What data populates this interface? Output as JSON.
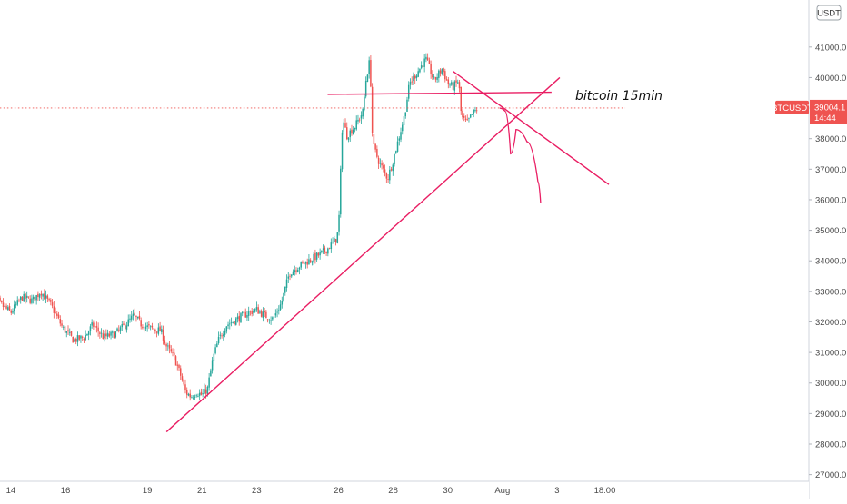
{
  "chart_data": {
    "type": "candlestick",
    "symbol_label": "BTCUSDT",
    "currency_label": "USDT",
    "annotation": "bitcoin 15min",
    "last_price": 39004.1,
    "last_price_label": "39004.1",
    "countdown_label": "14:44",
    "ylim": [
      27000,
      42000
    ],
    "y_ticks": [
      27000,
      28000,
      29000,
      30000,
      31000,
      32000,
      33000,
      34000,
      35000,
      36000,
      37000,
      38000,
      39000,
      40000,
      41000
    ],
    "y_tick_labels": [
      "27000.0",
      "28000.0",
      "29000.0",
      "30000.0",
      "31000.0",
      "32000.0",
      "33000.0",
      "34000.0",
      "35000.0",
      "36000.0",
      "37000.0",
      "38000.0",
      "39000.0",
      "40000.0",
      "41000.0"
    ],
    "x_range": [
      13.2,
      36.5
    ],
    "x_ticks": [
      {
        "label": "14",
        "day": 14
      },
      {
        "label": "16",
        "day": 16
      },
      {
        "label": "19",
        "day": 19
      },
      {
        "label": "21",
        "day": 21
      },
      {
        "label": "23",
        "day": 23
      },
      {
        "label": "26",
        "day": 26
      },
      {
        "label": "28",
        "day": 28
      },
      {
        "label": "30",
        "day": 30
      },
      {
        "label": "Aug",
        "day": 32
      },
      {
        "label": "3",
        "day": 34
      },
      {
        "label": "18:00",
        "day": 35.75
      }
    ],
    "price_path": [
      [
        13.2,
        33000
      ],
      [
        13.6,
        32600
      ],
      [
        14.0,
        32300
      ],
      [
        14.4,
        32800
      ],
      [
        14.8,
        32700
      ],
      [
        15.1,
        33000
      ],
      [
        15.5,
        32500
      ],
      [
        15.9,
        31800
      ],
      [
        16.3,
        31400
      ],
      [
        16.7,
        31500
      ],
      [
        17.0,
        31900
      ],
      [
        17.4,
        31500
      ],
      [
        17.8,
        31600
      ],
      [
        18.2,
        31900
      ],
      [
        18.5,
        32200
      ],
      [
        18.8,
        31900
      ],
      [
        19.1,
        31800
      ],
      [
        19.5,
        31700
      ],
      [
        19.7,
        31200
      ],
      [
        20.0,
        30800
      ],
      [
        20.2,
        30300
      ],
      [
        20.4,
        29700
      ],
      [
        20.6,
        29550
      ],
      [
        20.8,
        29700
      ],
      [
        21.0,
        29600
      ],
      [
        21.2,
        29800
      ],
      [
        21.4,
        30800
      ],
      [
        21.6,
        31400
      ],
      [
        21.9,
        31900
      ],
      [
        22.3,
        32100
      ],
      [
        22.7,
        32300
      ],
      [
        23.0,
        32400
      ],
      [
        23.3,
        32200
      ],
      [
        23.6,
        32100
      ],
      [
        23.9,
        32600
      ],
      [
        24.2,
        33600
      ],
      [
        24.5,
        33800
      ],
      [
        24.9,
        34000
      ],
      [
        25.3,
        34200
      ],
      [
        25.6,
        34400
      ],
      [
        25.9,
        34700
      ],
      [
        26.0,
        35000
      ],
      [
        26.1,
        37500
      ],
      [
        26.15,
        38700
      ],
      [
        26.3,
        38100
      ],
      [
        26.6,
        38400
      ],
      [
        26.9,
        38900
      ],
      [
        27.0,
        39900
      ],
      [
        27.15,
        40600
      ],
      [
        27.25,
        37800
      ],
      [
        27.5,
        37200
      ],
      [
        27.8,
        36700
      ],
      [
        28.0,
        37300
      ],
      [
        28.2,
        38000
      ],
      [
        28.4,
        38700
      ],
      [
        28.6,
        39800
      ],
      [
        28.9,
        40200
      ],
      [
        29.2,
        40600
      ],
      [
        29.5,
        39900
      ],
      [
        29.8,
        40300
      ],
      [
        30.0,
        39800
      ],
      [
        30.2,
        39700
      ],
      [
        30.4,
        39900
      ],
      [
        30.5,
        38700
      ],
      [
        30.7,
        38500
      ],
      [
        30.9,
        38800
      ],
      [
        31.1,
        39000
      ]
    ],
    "drawings": [
      {
        "name": "rising-trendline",
        "points": [
          [
            19.7,
            28400
          ],
          [
            34.1,
            40000
          ]
        ]
      },
      {
        "name": "resistance-line",
        "points": [
          [
            25.6,
            39450
          ],
          [
            33.8,
            39520
          ]
        ]
      },
      {
        "name": "descending-line",
        "points": [
          [
            30.2,
            40200
          ],
          [
            35.9,
            36500
          ]
        ]
      },
      {
        "name": "horizontal-dotted",
        "points": [
          [
            13.2,
            39004.1
          ],
          [
            36.5,
            39004.1
          ]
        ],
        "dotted": true
      },
      {
        "name": "projection-path",
        "curve": true,
        "points": [
          [
            31.9,
            39000
          ],
          [
            32.1,
            38900
          ],
          [
            32.3,
            37500
          ],
          [
            32.5,
            38300
          ],
          [
            32.9,
            37900
          ],
          [
            33.3,
            36600
          ],
          [
            33.4,
            35900
          ]
        ]
      }
    ],
    "colors": {
      "up": "#26a69a",
      "down": "#ef5350",
      "drawing": "#e91e63",
      "price_tag": "#ef5350",
      "axis_border": "#d1d4dc",
      "axis_text": "#4a4a4a"
    }
  }
}
